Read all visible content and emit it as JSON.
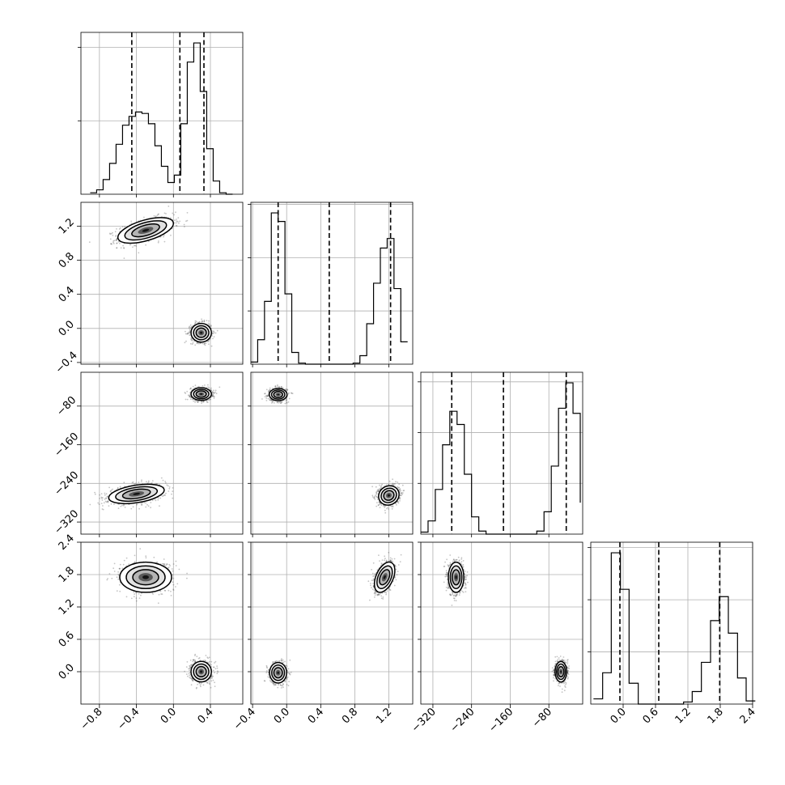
{
  "chart_data": {
    "type": "corner",
    "title": "",
    "grid": true,
    "parameters": [
      {
        "index": 0,
        "range": [
          -1.0,
          0.75
        ],
        "ticks": [
          -0.8,
          -0.4,
          0.0,
          0.4
        ],
        "tick_labels": [
          "−0.8",
          "−0.4",
          "0.0",
          "0.4"
        ],
        "quantiles": [
          -0.45,
          0.07,
          0.33
        ]
      },
      {
        "index": 1,
        "range": [
          -0.42,
          1.48
        ],
        "ticks": [
          -0.4,
          0.0,
          0.4,
          0.8,
          1.2
        ],
        "tick_labels": [
          "−0.4",
          "0.0",
          "0.4",
          "0.8",
          "1.2"
        ],
        "quantiles": [
          -0.1,
          0.5,
          1.22
        ]
      },
      {
        "index": 2,
        "range": [
          -345,
          -10
        ],
        "ticks": [
          -320,
          -240,
          -160,
          -80
        ],
        "tick_labels": [
          "−320",
          "−240",
          "−160",
          "−80"
        ],
        "quantiles": [
          -281,
          -174,
          -44
        ]
      },
      {
        "index": 3,
        "range": [
          -0.6,
          2.4
        ],
        "ticks": [
          0.0,
          0.6,
          1.2,
          1.8,
          2.4
        ],
        "tick_labels": [
          "0.0",
          "0.6",
          "1.2",
          "1.8",
          "2.4"
        ],
        "quantiles": [
          -0.06,
          0.66,
          1.79
        ]
      }
    ],
    "marginals": [
      {
        "param": 0,
        "edges": [
          -0.9,
          -0.83,
          -0.76,
          -0.69,
          -0.62,
          -0.55,
          -0.48,
          -0.41,
          -0.34,
          -0.27,
          -0.2,
          -0.13,
          -0.06,
          0.01,
          0.08,
          0.15,
          0.22,
          0.29,
          0.36,
          0.43,
          0.5,
          0.57,
          0.64
        ],
        "counts": [
          1,
          3,
          10,
          21,
          34,
          47,
          53,
          56,
          55,
          48,
          33,
          19,
          8,
          13,
          48,
          90,
          103,
          70,
          31,
          9,
          1,
          0
        ]
      },
      {
        "param": 1,
        "edges": [
          -0.42,
          -0.34,
          -0.26,
          -0.18,
          -0.1,
          -0.02,
          0.06,
          0.14,
          0.22,
          0.3,
          0.38,
          0.46,
          0.54,
          0.62,
          0.7,
          0.78,
          0.86,
          0.94,
          1.02,
          1.1,
          1.18,
          1.26,
          1.34,
          1.42
        ],
        "counts": [
          2,
          23,
          59,
          142,
          134,
          66,
          11,
          1,
          0,
          0,
          0,
          0,
          0,
          0,
          0,
          1,
          8,
          38,
          76,
          109,
          118,
          71,
          21
        ]
      },
      {
        "param": 2,
        "edges": [
          -345,
          -330,
          -315,
          -300,
          -285,
          -270,
          -255,
          -240,
          -225,
          -210,
          -195,
          -180,
          -165,
          -150,
          -135,
          -120,
          -105,
          -90,
          -75,
          -60,
          -45,
          -30,
          -15
        ],
        "counts": [
          2,
          13,
          44,
          88,
          121,
          108,
          59,
          17,
          3,
          0,
          0,
          0,
          0,
          0,
          0,
          0,
          3,
          22,
          67,
          124,
          149,
          119,
          31
        ]
      },
      {
        "param": 3,
        "edges": [
          -0.55,
          -0.38,
          -0.22,
          -0.05,
          0.11,
          0.28,
          0.45,
          0.62,
          0.78,
          0.95,
          1.12,
          1.28,
          1.45,
          1.62,
          1.78,
          1.95,
          2.12,
          2.28,
          2.45
        ],
        "counts": [
          5,
          30,
          145,
          110,
          20,
          0,
          0,
          0,
          0,
          0,
          2,
          12,
          40,
          80,
          103,
          68,
          25,
          3
        ]
      }
    ],
    "pairs": [
      {
        "x": 0,
        "y": 1,
        "modes": [
          {
            "center": [
              -0.3,
              1.15
            ],
            "sd": [
              0.15,
              0.075
            ],
            "rho": 0.55
          },
          {
            "center": [
              0.3,
              -0.05
            ],
            "sd": [
              0.055,
              0.055
            ],
            "rho": 0.0
          }
        ]
      },
      {
        "x": 0,
        "y": 2,
        "modes": [
          {
            "center": [
              0.3,
              -55
            ],
            "sd": [
              0.055,
              6.5
            ],
            "rho": 0.0
          },
          {
            "center": [
              -0.4,
              -262
            ],
            "sd": [
              0.15,
              10
            ],
            "rho": 0.4
          }
        ]
      },
      {
        "x": 1,
        "y": 2,
        "modes": [
          {
            "center": [
              -0.1,
              -56
            ],
            "sd": [
              0.052,
              6.3
            ],
            "rho": 0.0
          },
          {
            "center": [
              1.2,
              -265
            ],
            "sd": [
              0.06,
              10
            ],
            "rho": 0.1
          }
        ]
      },
      {
        "x": 0,
        "y": 3,
        "modes": [
          {
            "center": [
              -0.3,
              1.75
            ],
            "sd": [
              0.14,
              0.14
            ],
            "rho": 0.0
          },
          {
            "center": [
              0.3,
              0.0
            ],
            "sd": [
              0.055,
              0.095
            ],
            "rho": 0.0
          }
        ]
      },
      {
        "x": 1,
        "y": 3,
        "modes": [
          {
            "center": [
              -0.1,
              -0.02
            ],
            "sd": [
              0.05,
              0.095
            ],
            "rho": 0.0
          },
          {
            "center": [
              1.15,
              1.75
            ],
            "sd": [
              0.06,
              0.14
            ],
            "rho": 0.45
          }
        ]
      },
      {
        "x": 2,
        "y": 3,
        "modes": [
          {
            "center": [
              -272,
              1.75
            ],
            "sd": [
              8,
              0.14
            ],
            "rho": 0.0
          },
          {
            "center": [
              -55,
              0.0
            ],
            "sd": [
              6,
              0.095
            ],
            "rho": 0.0
          }
        ]
      }
    ],
    "contour_levels_sigma": [
      1.0,
      1.5,
      2.0
    ]
  }
}
